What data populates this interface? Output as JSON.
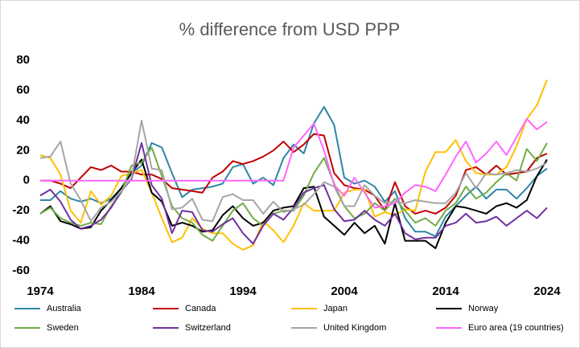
{
  "chart_data": {
    "type": "line",
    "title": "% difference from USD PPP",
    "x": [
      1974,
      1975,
      1976,
      1977,
      1978,
      1979,
      1980,
      1981,
      1982,
      1983,
      1984,
      1985,
      1986,
      1987,
      1988,
      1989,
      1990,
      1991,
      1992,
      1993,
      1994,
      1995,
      1996,
      1997,
      1998,
      1999,
      2000,
      2001,
      2002,
      2003,
      2004,
      2005,
      2006,
      2007,
      2008,
      2009,
      2010,
      2011,
      2012,
      2013,
      2014,
      2015,
      2016,
      2017,
      2018,
      2019,
      2020,
      2021,
      2022,
      2023,
      2024
    ],
    "xlim": [
      1974,
      2024
    ],
    "xticks": [
      1974,
      1984,
      1994,
      2004,
      2014,
      2024
    ],
    "ylim": [
      -60,
      80
    ],
    "yticks": [
      -60,
      -40,
      -20,
      0,
      20,
      40,
      60,
      80
    ],
    "series": [
      {
        "name": "Australia",
        "color": "#2e86a6",
        "values": [
          -13,
          -13,
          -7,
          -12,
          -14,
          -12,
          -15,
          -12,
          -5,
          5,
          10,
          25,
          22,
          5,
          -11,
          -6,
          -5,
          -4,
          -2,
          9,
          11,
          -2,
          2,
          -3,
          15,
          24,
          18,
          38,
          49,
          37,
          2,
          -2,
          0,
          -4,
          -14,
          -7,
          -25,
          -34,
          -34,
          -37,
          -24,
          -17,
          -10,
          -4,
          -12,
          -6,
          -6,
          -12,
          -5,
          3,
          8
        ]
      },
      {
        "name": "Canada",
        "color": "#c00000",
        "values": [
          0,
          0,
          -2,
          -5,
          2,
          9,
          7,
          10,
          6,
          6,
          4,
          4,
          1,
          -5,
          -6,
          -7,
          -8,
          2,
          6,
          13,
          11,
          13,
          16,
          20,
          26,
          19,
          24,
          31,
          30,
          5,
          -3,
          -5,
          -6,
          -10,
          -20,
          -1,
          -17,
          -22,
          -20,
          -22,
          -18,
          -10,
          7,
          9,
          4,
          10,
          4,
          5,
          6,
          15,
          18
        ]
      },
      {
        "name": "Japan",
        "color": "#ffc000",
        "values": [
          17,
          15,
          4,
          -20,
          -28,
          -7,
          -16,
          -10,
          3,
          5,
          7,
          -8,
          -25,
          -41,
          -38,
          -25,
          -32,
          -35,
          -35,
          -42,
          -46,
          -43,
          -27,
          -33,
          -41,
          -30,
          -15,
          -20,
          -20,
          -20,
          -8,
          -6,
          -6,
          -24,
          -21,
          -23,
          -19,
          -20,
          6,
          19,
          19,
          27,
          13,
          5,
          4,
          4,
          9,
          23,
          41,
          50,
          67
        ]
      },
      {
        "name": "Norway",
        "color": "#000000",
        "values": [
          -22,
          -17,
          -27,
          -29,
          -32,
          -31,
          -20,
          -13,
          -5,
          5,
          14,
          -8,
          -14,
          -30,
          -28,
          -30,
          -34,
          -33,
          -23,
          -17,
          -25,
          -30,
          -28,
          -20,
          -18,
          -17,
          -5,
          -4,
          -24,
          -30,
          -36,
          -28,
          -35,
          -30,
          -42,
          -15,
          -40,
          -40,
          -40,
          -45,
          -28,
          -17,
          -18,
          -20,
          -22,
          -17,
          -15,
          -18,
          -13,
          3,
          14
        ]
      },
      {
        "name": "Sweden",
        "color": "#70ad47",
        "values": [
          -22,
          -18,
          -25,
          -28,
          -30,
          -28,
          -29,
          -17,
          -8,
          10,
          12,
          22,
          3,
          -17,
          -25,
          -28,
          -36,
          -40,
          -30,
          -20,
          -15,
          -25,
          -30,
          -22,
          -20,
          -20,
          -10,
          5,
          15,
          -2,
          -17,
          -25,
          -22,
          -15,
          -20,
          -12,
          -20,
          -28,
          -25,
          -30,
          -20,
          -15,
          -4,
          -12,
          -8,
          -1,
          5,
          0,
          21,
          13,
          25
        ]
      },
      {
        "name": "Switzerland",
        "color": "#7030a0",
        "values": [
          -10,
          -6,
          -14,
          -26,
          -32,
          -30,
          -26,
          -18,
          -7,
          1,
          25,
          -3,
          -12,
          -35,
          -20,
          -21,
          -33,
          -34,
          -29,
          -25,
          -35,
          -42,
          -30,
          -22,
          -26,
          -18,
          -8,
          -5,
          -3,
          -19,
          -27,
          -26,
          -20,
          -26,
          -30,
          -22,
          -35,
          -39,
          -38,
          -38,
          -30,
          -28,
          -22,
          -28,
          -27,
          -24,
          -30,
          -25,
          -20,
          -25,
          -18
        ]
      },
      {
        "name": "United Kingdom",
        "color": "#a6a6a6",
        "values": [
          15,
          16,
          26,
          -2,
          -13,
          -27,
          -18,
          -14,
          -7,
          2,
          40,
          8,
          7,
          -19,
          -18,
          -12,
          -26,
          -27,
          -11,
          -9,
          -13,
          -13,
          -22,
          -14,
          -21,
          -19,
          -16,
          -9,
          -1,
          -4,
          -17,
          -17,
          -3,
          -10,
          -15,
          -14,
          -15,
          -13,
          -14,
          -15,
          -15,
          -8,
          5,
          -5,
          5,
          4,
          5,
          7,
          6,
          8,
          12
        ]
      },
      {
        "name": "Euro area (19 countries)",
        "color": "#ff66ff",
        "values": [
          0,
          0,
          0,
          0,
          0,
          0,
          0,
          0,
          0,
          0,
          0,
          0,
          0,
          0,
          0,
          0,
          0,
          0,
          0,
          0,
          0,
          0,
          0,
          0,
          0,
          22,
          30,
          38,
          20,
          -3,
          -10,
          2,
          -8,
          -18,
          -17,
          -15,
          -8,
          -3,
          -4,
          -7,
          4,
          16,
          26,
          12,
          18,
          26,
          17,
          29,
          41,
          34,
          39
        ]
      }
    ]
  }
}
